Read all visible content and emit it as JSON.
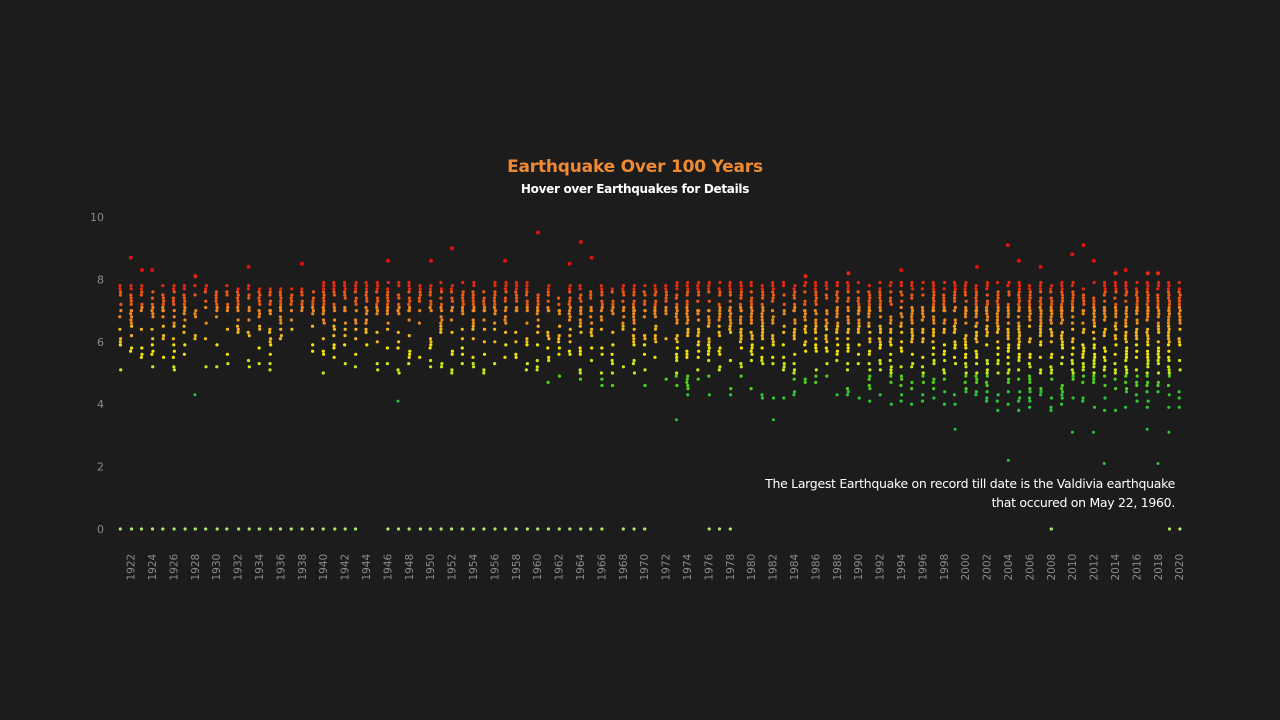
{
  "header": {
    "title": "Earthquake Over 100 Years",
    "subtitle": "Hover over Earthquakes for Details"
  },
  "annotation": {
    "line1": "The Largest Earthquake on record till date is the Valdivia earthquake",
    "line2": "that occured on May 22, 1960."
  },
  "colors": {
    "background": "#1c1c1c",
    "title": "#f08a32",
    "text": "#ffffff",
    "tick": "#8a8a8a",
    "magnitude_scale": [
      "#2ec43c",
      "#4fd11f",
      "#c9e81a",
      "#f2e30c",
      "#f5b81c",
      "#f08a1e",
      "#ee5a16",
      "#e52a10",
      "#de1010"
    ]
  },
  "chart_data": {
    "type": "scatter",
    "title": "Earthquake Over 100 Years",
    "subtitle": "Hover over Earthquakes for Details",
    "xlabel": "",
    "ylabel": "",
    "x_range": [
      1921,
      2020
    ],
    "ylim": [
      0,
      10
    ],
    "y_ticks": [
      0,
      2,
      4,
      6,
      8,
      10
    ],
    "x_ticks": [
      1922,
      1924,
      1926,
      1928,
      1930,
      1932,
      1934,
      1936,
      1938,
      1940,
      1942,
      1944,
      1946,
      1948,
      1950,
      1952,
      1954,
      1956,
      1958,
      1960,
      1962,
      1964,
      1966,
      1968,
      1970,
      1972,
      1974,
      1976,
      1978,
      1980,
      1982,
      1984,
      1986,
      1988,
      1990,
      1992,
      1994,
      1996,
      1998,
      2000,
      2002,
      2004,
      2006,
      2008,
      2010,
      2012,
      2014,
      2016,
      2018,
      2020
    ],
    "grid": false,
    "legend": "none",
    "annotation": "The Largest Earthquake on record till date is the Valdivia earthquake that occured on May 22, 1960.",
    "highlights": [
      {
        "year": 1922,
        "magnitude": 8.7
      },
      {
        "year": 1923,
        "magnitude": 8.3
      },
      {
        "year": 1924,
        "magnitude": 8.3
      },
      {
        "year": 1928,
        "magnitude": 8.1
      },
      {
        "year": 1933,
        "magnitude": 8.4
      },
      {
        "year": 1938,
        "magnitude": 8.5
      },
      {
        "year": 1946,
        "magnitude": 8.6
      },
      {
        "year": 1950,
        "magnitude": 8.6
      },
      {
        "year": 1952,
        "magnitude": 9.0
      },
      {
        "year": 1957,
        "magnitude": 8.6
      },
      {
        "year": 1960,
        "magnitude": 9.5
      },
      {
        "year": 1963,
        "magnitude": 8.5
      },
      {
        "year": 1964,
        "magnitude": 9.2
      },
      {
        "year": 1965,
        "magnitude": 8.7
      },
      {
        "year": 1985,
        "magnitude": 8.1
      },
      {
        "year": 1989,
        "magnitude": 8.2
      },
      {
        "year": 1994,
        "magnitude": 8.3
      },
      {
        "year": 2001,
        "magnitude": 8.4
      },
      {
        "year": 2004,
        "magnitude": 9.1
      },
      {
        "year": 2005,
        "magnitude": 8.6
      },
      {
        "year": 2007,
        "magnitude": 8.4
      },
      {
        "year": 2010,
        "magnitude": 8.8
      },
      {
        "year": 2011,
        "magnitude": 9.1
      },
      {
        "year": 2012,
        "magnitude": 8.6
      },
      {
        "year": 2014,
        "magnitude": 8.2
      },
      {
        "year": 2015,
        "magnitude": 8.3
      },
      {
        "year": 2017,
        "magnitude": 8.2
      },
      {
        "year": 2018,
        "magnitude": 8.2
      }
    ],
    "low_outliers": [
      {
        "year": 1928,
        "magnitude": 4.3
      },
      {
        "year": 1947,
        "magnitude": 4.1
      },
      {
        "year": 1973,
        "magnitude": 3.5
      },
      {
        "year": 1982,
        "magnitude": 3.5
      },
      {
        "year": 1999,
        "magnitude": 3.2
      },
      {
        "year": 2004,
        "magnitude": 2.2
      },
      {
        "year": 2010,
        "magnitude": 3.1
      },
      {
        "year": 2012,
        "magnitude": 3.1
      },
      {
        "year": 2013,
        "magnitude": 2.1
      },
      {
        "year": 2017,
        "magnitude": 3.2
      },
      {
        "year": 2018,
        "magnitude": 2.1
      },
      {
        "year": 2019,
        "magnitude": 3.1
      }
    ],
    "zero_magnitude_years": [
      1921,
      1922,
      1923,
      1924,
      1925,
      1926,
      1927,
      1928,
      1929,
      1930,
      1931,
      1932,
      1933,
      1934,
      1935,
      1936,
      1937,
      1938,
      1939,
      1940,
      1941,
      1942,
      1943,
      1946,
      1947,
      1948,
      1949,
      1950,
      1951,
      1952,
      1953,
      1954,
      1955,
      1956,
      1957,
      1958,
      1959,
      1960,
      1961,
      1962,
      1963,
      1964,
      1965,
      1966,
      1968,
      1969,
      1970,
      1976,
      1977,
      1978,
      2008,
      2019,
      2020
    ],
    "year_bands": [
      {
        "start": 1921,
        "end": 1939,
        "min": 5.0,
        "max": 7.8,
        "density": 0.35
      },
      {
        "start": 1940,
        "end": 1959,
        "min": 5.0,
        "max": 7.9,
        "density": 0.4
      },
      {
        "start": 1960,
        "end": 1972,
        "min": 4.5,
        "max": 7.8,
        "density": 0.5
      },
      {
        "start": 1973,
        "end": 1989,
        "min": 4.2,
        "max": 7.9,
        "density": 0.6
      },
      {
        "start": 1990,
        "end": 1999,
        "min": 4.0,
        "max": 7.9,
        "density": 0.65
      },
      {
        "start": 2000,
        "end": 2020,
        "min": 3.8,
        "max": 7.9,
        "density": 0.85
      }
    ]
  }
}
